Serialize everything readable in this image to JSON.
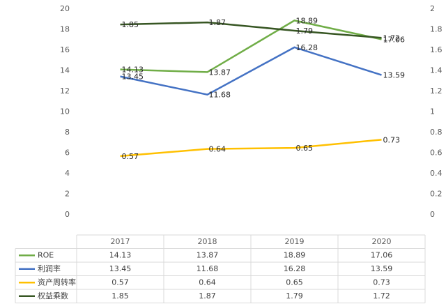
{
  "chart_data": {
    "type": "line",
    "categories": [
      "2017",
      "2018",
      "2019",
      "2020"
    ],
    "series": [
      {
        "name": "ROE",
        "color": "#70ad47",
        "values": [
          14.13,
          13.87,
          18.89,
          17.06
        ]
      },
      {
        "name": "利润率",
        "color": "#4472c4",
        "values": [
          13.45,
          11.68,
          16.28,
          13.59
        ]
      },
      {
        "name": "资产周转率",
        "color": "#ffc000",
        "axis": "y2",
        "values": [
          0.57,
          0.64,
          0.65,
          0.73
        ]
      },
      {
        "name": "权益乘数",
        "color": "#375623",
        "axis": "y2",
        "values": [
          1.85,
          1.87,
          1.79,
          1.72
        ]
      }
    ],
    "ylim": [
      0,
      20
    ],
    "yticks": [
      0,
      2,
      4,
      6,
      8,
      10,
      12,
      14,
      16,
      18,
      20
    ],
    "y2lim": [
      0,
      2
    ],
    "y2ticks": [
      0,
      0.2,
      0.4,
      0.6,
      0.8,
      1,
      1.2,
      1.4,
      1.6,
      1.8,
      2
    ],
    "data_table": true
  }
}
